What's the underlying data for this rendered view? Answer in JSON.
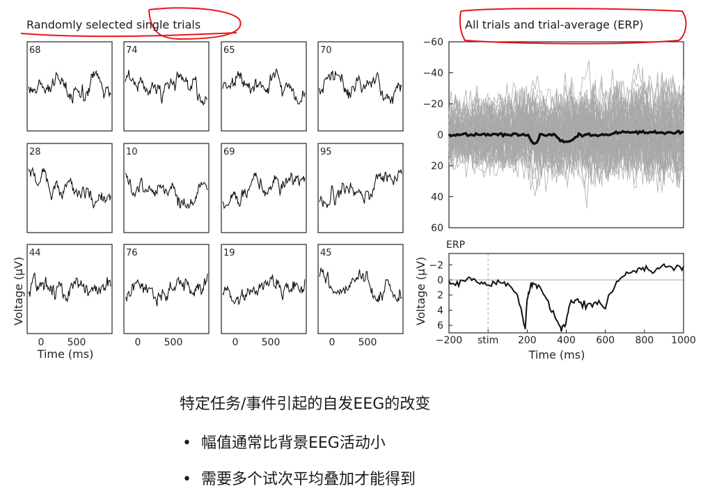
{
  "left_title": "Randomly selected single trials",
  "right_title": "All trials and trial-average (ERP)",
  "chart_data": [
    {
      "type": "line",
      "title": "Randomly selected single trials",
      "ylabel": "Voltage (µV)",
      "xlabel": "Time (ms)",
      "x_ticks": [
        "0",
        "500"
      ],
      "trials": [
        "68",
        "74",
        "65",
        "70",
        "28",
        "10",
        "69",
        "95",
        "44",
        "76",
        "19",
        "45"
      ]
    },
    {
      "type": "line",
      "title": "All trials and trial-average (ERP)",
      "ylim": [
        -60,
        60
      ],
      "y_inverted": true,
      "y_ticks": [
        "-60",
        "-40",
        "-20",
        "0",
        "20",
        "40",
        "60"
      ],
      "series": [
        {
          "color": "#a8a8a8"
        },
        {
          "color": "#111111"
        }
      ]
    },
    {
      "type": "line",
      "title": "ERP",
      "xlabel": "Time (ms)",
      "ylabel": "Voltage (µV)",
      "y_inverted": true,
      "ylim": [
        -3.5,
        7
      ],
      "y_ticks": [
        "-2",
        "0",
        "2",
        "4",
        "6"
      ],
      "x_ticks": [
        "-200",
        "stim",
        "200",
        "400",
        "600",
        "800",
        "1000"
      ],
      "x_tick_values": [
        -200,
        0,
        200,
        400,
        600,
        800,
        1000
      ],
      "xlim": [
        -200,
        1000
      ],
      "x": [
        -200,
        -150,
        -100,
        -50,
        0,
        50,
        100,
        150,
        175,
        190,
        200,
        220,
        250,
        300,
        350,
        380,
        400,
        420,
        450,
        500,
        550,
        600,
        650,
        700,
        750,
        800,
        850,
        900,
        950,
        1000
      ],
      "y": [
        0.2,
        0.5,
        -0.3,
        0.4,
        0.8,
        0.2,
        0.6,
        2.0,
        4.5,
        6.5,
        2.5,
        0.5,
        0.8,
        2.5,
        5.5,
        6.5,
        5.5,
        3.0,
        2.5,
        3.5,
        3.0,
        3.5,
        0.5,
        -0.8,
        -1.2,
        -1.5,
        -1.2,
        -1.8,
        -1.5,
        -1.8
      ]
    }
  ],
  "caption": {
    "heading": "特定任务/事件引起的自发EEG的改变",
    "bullets": [
      "幅值通常比背景EEG活动小",
      "需要多个试次平均叠加才能得到"
    ],
    "bullet_symbol": "•"
  },
  "annotation_color": "#e8141c"
}
